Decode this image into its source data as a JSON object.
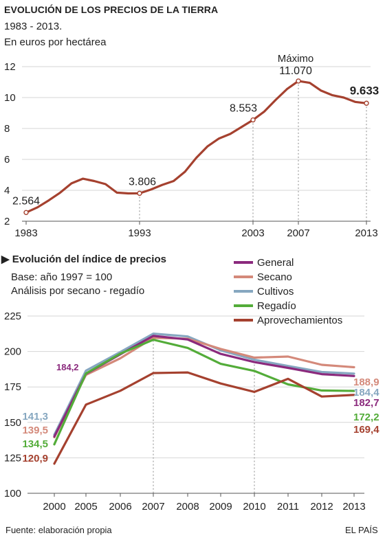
{
  "header": {
    "title": "EVOLUCIÓN DE LOS PRECIOS DE LA TIERRA",
    "period": "1983 - 2013.",
    "unit": "En euros por hectárea"
  },
  "section2": {
    "title": "Evolución del índice de precios",
    "base": "Base:  año 1997 = 100",
    "analysis": "Análisis por secano - regadío"
  },
  "footer": {
    "source": "Fuente: elaboración propia",
    "brand": "EL PAÍS"
  },
  "chart_data": [
    {
      "type": "line",
      "title": "EVOLUCIÓN DE LOS PRECIOS DE LA TIERRA",
      "subtitle": "1983 - 2013. En euros por hectárea",
      "xlim": [
        1983,
        2013
      ],
      "ylim": [
        2,
        12
      ],
      "yticks": [
        2,
        4,
        6,
        8,
        10,
        12
      ],
      "xticks": [
        1983,
        1993,
        2003,
        2007,
        2013
      ],
      "grid": true,
      "color": "#a5412f",
      "series": [
        {
          "x": [
            1983,
            1984,
            1985,
            1986,
            1987,
            1988,
            1989,
            1990,
            1991,
            1992,
            1993,
            1994,
            1995,
            1996,
            1997,
            1998,
            1999,
            2000,
            2001,
            2002,
            2003,
            2004,
            2005,
            2006,
            2007,
            2008,
            2009,
            2010,
            2011,
            2012,
            2013
          ],
          "y": [
            2.564,
            2.9,
            3.35,
            3.85,
            4.45,
            4.75,
            4.6,
            4.4,
            3.85,
            3.8,
            3.806,
            4.05,
            4.35,
            4.6,
            5.2,
            6.1,
            6.85,
            7.35,
            7.65,
            8.1,
            8.553,
            9.1,
            9.85,
            10.55,
            11.07,
            10.95,
            10.45,
            10.15,
            10.0,
            9.72,
            9.633
          ]
        }
      ],
      "markers": [
        1983,
        1993,
        2003,
        2007,
        2013
      ],
      "dropline_years": [
        1993,
        2003,
        2007,
        2013
      ],
      "annotations": [
        {
          "x": 1983,
          "text": "2.564",
          "bold": false
        },
        {
          "x": 1993,
          "text": "3.806",
          "bold": false
        },
        {
          "x": 2003,
          "text": "8.553",
          "bold": false
        },
        {
          "x": 2007,
          "text": "11.070",
          "bold": false,
          "label": "Máximo"
        },
        {
          "x": 2013,
          "text": "9.633",
          "bold": true
        }
      ]
    },
    {
      "type": "line",
      "title": "Evolución del índice de precios",
      "subtitle": "Base:  año 1997 = 100. Análisis por secano - regadío",
      "categories": [
        "2000",
        "2005",
        "2006",
        "2007",
        "2008",
        "2009",
        "2010",
        "2011",
        "2012",
        "2013"
      ],
      "ylim": [
        100,
        225
      ],
      "yticks": [
        100,
        125,
        150,
        175,
        200,
        225
      ],
      "grid": true,
      "legend_position": "top-right",
      "dropline_categories": [
        "2007",
        "2010"
      ],
      "series": [
        {
          "name": "Cultivos",
          "color": "#86a7c0",
          "values": [
            141.3,
            186.5,
            199.6,
            212.6,
            210.6,
            200.8,
            194.2,
            189.8,
            185.5,
            184.4
          ],
          "start_label": "141,3",
          "end_label": "184,4"
        },
        {
          "name": "Secano",
          "color": "#d4897a",
          "values": [
            139.5,
            183.5,
            195.2,
            209.6,
            209.0,
            201.8,
            195.7,
            196.4,
            190.6,
            188.9
          ],
          "start_label": "139,5",
          "end_label": "188,9"
        },
        {
          "name": "General",
          "color": "#8b2a7d",
          "values": [
            140.0,
            184.2,
            198.0,
            211.0,
            208.5,
            198.3,
            192.5,
            188.4,
            184.0,
            182.7
          ],
          "start_label": "",
          "end_label": "182,7",
          "mid_label": "184,2"
        },
        {
          "name": "Regadío",
          "color": "#53ac39",
          "values": [
            134.5,
            184.5,
            198.5,
            208.3,
            202.5,
            191.3,
            186.3,
            176.8,
            172.5,
            172.2
          ],
          "start_label": "134,5",
          "end_label": "172,2"
        },
        {
          "name": "Aprovechamientos",
          "color": "#a5412f",
          "values": [
            120.9,
            162.5,
            172.3,
            184.8,
            185.2,
            177.4,
            171.5,
            180.7,
            168.2,
            169.4
          ],
          "start_label": "120,9",
          "end_label": "169,4"
        }
      ],
      "legend_order": [
        "General",
        "Secano",
        "Cultivos",
        "Regadío",
        "Aprovechamientos"
      ]
    }
  ]
}
